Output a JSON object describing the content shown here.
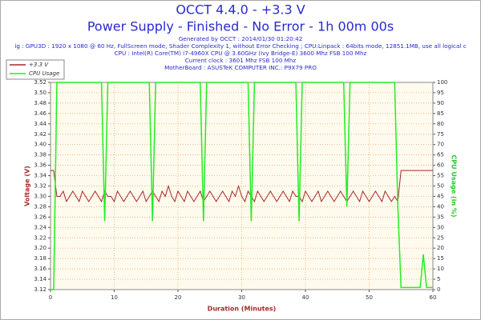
{
  "chart_data": {
    "type": "line",
    "title": "OCCT 4.4.0 - +3.3 V",
    "subtitle": "Power Supply - Finished - No Error - 1h 00m 00s",
    "annotations": [
      "Generated by OCCT : 2014/01/30 01:20:42",
      "ig : GPU3D : 1920 x 1080 @ 60 Hz, FullScreen mode, Shader Complexity 1, without Error Checking ; CPU:Linpack : 64bits mode, 12851.1MB, use all logical c",
      "CPU : Intel(R) Core(TM) i7-4960X CPU @ 3.60GHz (Ivy Bridge-E) 3600 Mhz FSB 100 Mhz",
      "Current clock : 3601 Mhz FSB 100 Mhz",
      "MotherBoard : ASUSTeK COMPUTER INC.: P9X79 PRO"
    ],
    "x_label": "Duration (Minutes)",
    "y_label": "Voltage (V)",
    "y2_label": "CPU Usage (in %)",
    "legend": "top-left",
    "grid": true,
    "xlim": [
      0,
      60
    ],
    "xticks": [
      0,
      10,
      20,
      30,
      40,
      50,
      60
    ],
    "ylim": [
      3.12,
      3.52
    ],
    "yticks": [
      3.12,
      3.14,
      3.16,
      3.18,
      {
        "value": 3.2,
        "label": "3.20"
      },
      3.22,
      3.24,
      3.26,
      3.28,
      {
        "value": 3.3,
        "label": "3.30"
      },
      3.32,
      3.34,
      3.36,
      3.38,
      {
        "value": 3.4,
        "label": "3.40"
      },
      3.42,
      3.44,
      3.46,
      3.48,
      {
        "value": 3.5,
        "label": "3.50"
      },
      3.52
    ],
    "y2lim": [
      0,
      100
    ],
    "y2ticks": [
      0,
      5,
      10,
      15,
      20,
      25,
      30,
      35,
      40,
      45,
      50,
      55,
      60,
      65,
      70,
      75,
      80,
      85,
      90,
      95,
      100
    ],
    "x": [
      0,
      0.5,
      1,
      1.5,
      2,
      2.5,
      3,
      3.5,
      4,
      4.5,
      5,
      5.5,
      6,
      6.5,
      7,
      7.5,
      8,
      8.5,
      9,
      9.5,
      10,
      10.5,
      11,
      11.5,
      12,
      12.5,
      13,
      13.5,
      14,
      14.5,
      15,
      15.5,
      16,
      16.5,
      17,
      17.5,
      18,
      18.5,
      19,
      19.5,
      20,
      20.5,
      21,
      21.5,
      22,
      22.5,
      23,
      23.5,
      24,
      24.5,
      25,
      25.5,
      26,
      26.5,
      27,
      27.5,
      28,
      28.5,
      29,
      29.5,
      30,
      30.5,
      31,
      31.5,
      32,
      32.5,
      33,
      33.5,
      34,
      34.5,
      35,
      35.5,
      36,
      36.5,
      37,
      37.5,
      38,
      38.5,
      39,
      39.5,
      40,
      40.5,
      41,
      41.5,
      42,
      42.5,
      43,
      43.5,
      44,
      44.5,
      45,
      45.5,
      46,
      46.5,
      47,
      47.5,
      48,
      48.5,
      49,
      49.5,
      50,
      50.5,
      51,
      51.5,
      52,
      52.5,
      53,
      53.5,
      54,
      54.5,
      55,
      55.5,
      56,
      56.5,
      57,
      57.5,
      58,
      58.5,
      59,
      59.5,
      60
    ],
    "series": [
      {
        "name": "+3.3 V",
        "color": "#a52a2a",
        "axis": "y",
        "values": [
          3.35,
          3.35,
          3.3,
          3.3,
          3.31,
          3.29,
          3.3,
          3.31,
          3.3,
          3.29,
          3.31,
          3.3,
          3.29,
          3.3,
          3.31,
          3.3,
          3.29,
          3.31,
          3.3,
          3.3,
          3.29,
          3.31,
          3.3,
          3.29,
          3.3,
          3.31,
          3.3,
          3.29,
          3.3,
          3.31,
          3.29,
          3.3,
          3.31,
          3.3,
          3.29,
          3.31,
          3.3,
          3.32,
          3.3,
          3.29,
          3.31,
          3.3,
          3.29,
          3.31,
          3.3,
          3.29,
          3.3,
          3.31,
          3.29,
          3.3,
          3.31,
          3.3,
          3.29,
          3.3,
          3.31,
          3.3,
          3.29,
          3.31,
          3.3,
          3.32,
          3.3,
          3.29,
          3.31,
          3.3,
          3.29,
          3.31,
          3.3,
          3.29,
          3.3,
          3.31,
          3.3,
          3.29,
          3.3,
          3.31,
          3.3,
          3.29,
          3.31,
          3.3,
          3.3,
          3.29,
          3.31,
          3.3,
          3.29,
          3.3,
          3.31,
          3.29,
          3.3,
          3.31,
          3.3,
          3.29,
          3.3,
          3.31,
          3.3,
          3.29,
          3.3,
          3.31,
          3.3,
          3.29,
          3.31,
          3.3,
          3.29,
          3.3,
          3.31,
          3.3,
          3.29,
          3.31,
          3.3,
          3.29,
          3.3,
          3.29,
          3.35,
          3.35,
          3.35,
          3.35,
          3.35,
          3.35,
          3.35,
          3.35,
          3.35,
          3.35,
          3.35
        ]
      },
      {
        "name": "CPU Usage",
        "color": "#22ee22",
        "axis": "y2",
        "values": [
          0,
          0,
          100,
          100,
          100,
          100,
          100,
          100,
          100,
          100,
          100,
          100,
          100,
          100,
          100,
          100,
          100,
          33,
          100,
          100,
          100,
          100,
          100,
          100,
          100,
          100,
          100,
          100,
          100,
          100,
          100,
          100,
          33,
          100,
          100,
          100,
          100,
          100,
          100,
          100,
          100,
          100,
          100,
          100,
          100,
          100,
          100,
          100,
          33,
          100,
          100,
          100,
          100,
          100,
          100,
          100,
          100,
          100,
          100,
          100,
          100,
          100,
          100,
          33,
          100,
          100,
          100,
          100,
          100,
          100,
          100,
          100,
          100,
          100,
          100,
          100,
          100,
          100,
          33,
          100,
          100,
          100,
          100,
          100,
          100,
          100,
          100,
          100,
          100,
          100,
          100,
          100,
          100,
          40,
          100,
          100,
          100,
          100,
          100,
          100,
          100,
          100,
          100,
          100,
          100,
          100,
          100,
          100,
          100,
          40,
          1,
          1,
          1,
          1,
          1,
          1,
          1,
          17,
          1,
          1,
          1
        ]
      }
    ]
  }
}
